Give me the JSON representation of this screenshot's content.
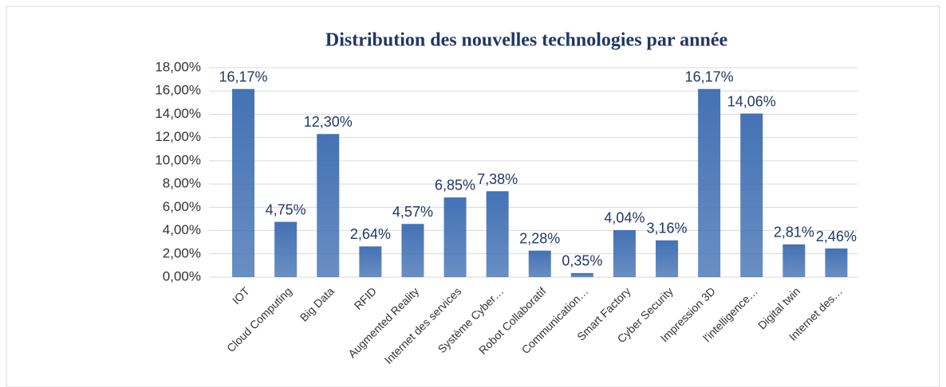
{
  "chart_data": {
    "type": "bar",
    "title": "Distribution des nouvelles technologies par année",
    "categories": [
      "IOT",
      "Cloud Computing",
      "Big Data",
      "RFID",
      "Augmented Reality",
      "Internet des services",
      "Système Cyber…",
      "Robot Collaboratif",
      "Communication…",
      "Smart Factory",
      "Cyber Security",
      "Impression 3D",
      "l'intelligence…",
      "Digital twin",
      "Internet des…"
    ],
    "values": [
      16.17,
      4.75,
      12.3,
      2.64,
      4.57,
      6.85,
      7.38,
      2.28,
      0.35,
      4.04,
      3.16,
      16.17,
      14.06,
      2.81,
      2.46
    ],
    "value_labels": [
      "16,17%",
      "4,75%",
      "12,30%",
      "2,64%",
      "4,57%",
      "6,85%",
      "7,38%",
      "2,28%",
      "0,35%",
      "4,04%",
      "3,16%",
      "16,17%",
      "14,06%",
      "2,81%",
      "2,46%"
    ],
    "color": "#4472b4",
    "ylim": [
      0,
      18
    ],
    "yticks": [
      {
        "value": 0,
        "label": "0,00%"
      },
      {
        "value": 2,
        "label": "2,00%"
      },
      {
        "value": 4,
        "label": "4,00%"
      },
      {
        "value": 6,
        "label": "6,00%"
      },
      {
        "value": 8,
        "label": "8,00%"
      },
      {
        "value": 10,
        "label": "10,00%"
      },
      {
        "value": 12,
        "label": "12,00%"
      },
      {
        "value": 14,
        "label": "14,00%"
      },
      {
        "value": 16,
        "label": "16,00%"
      },
      {
        "value": 18,
        "label": "18,00%"
      }
    ],
    "grid": true
  }
}
